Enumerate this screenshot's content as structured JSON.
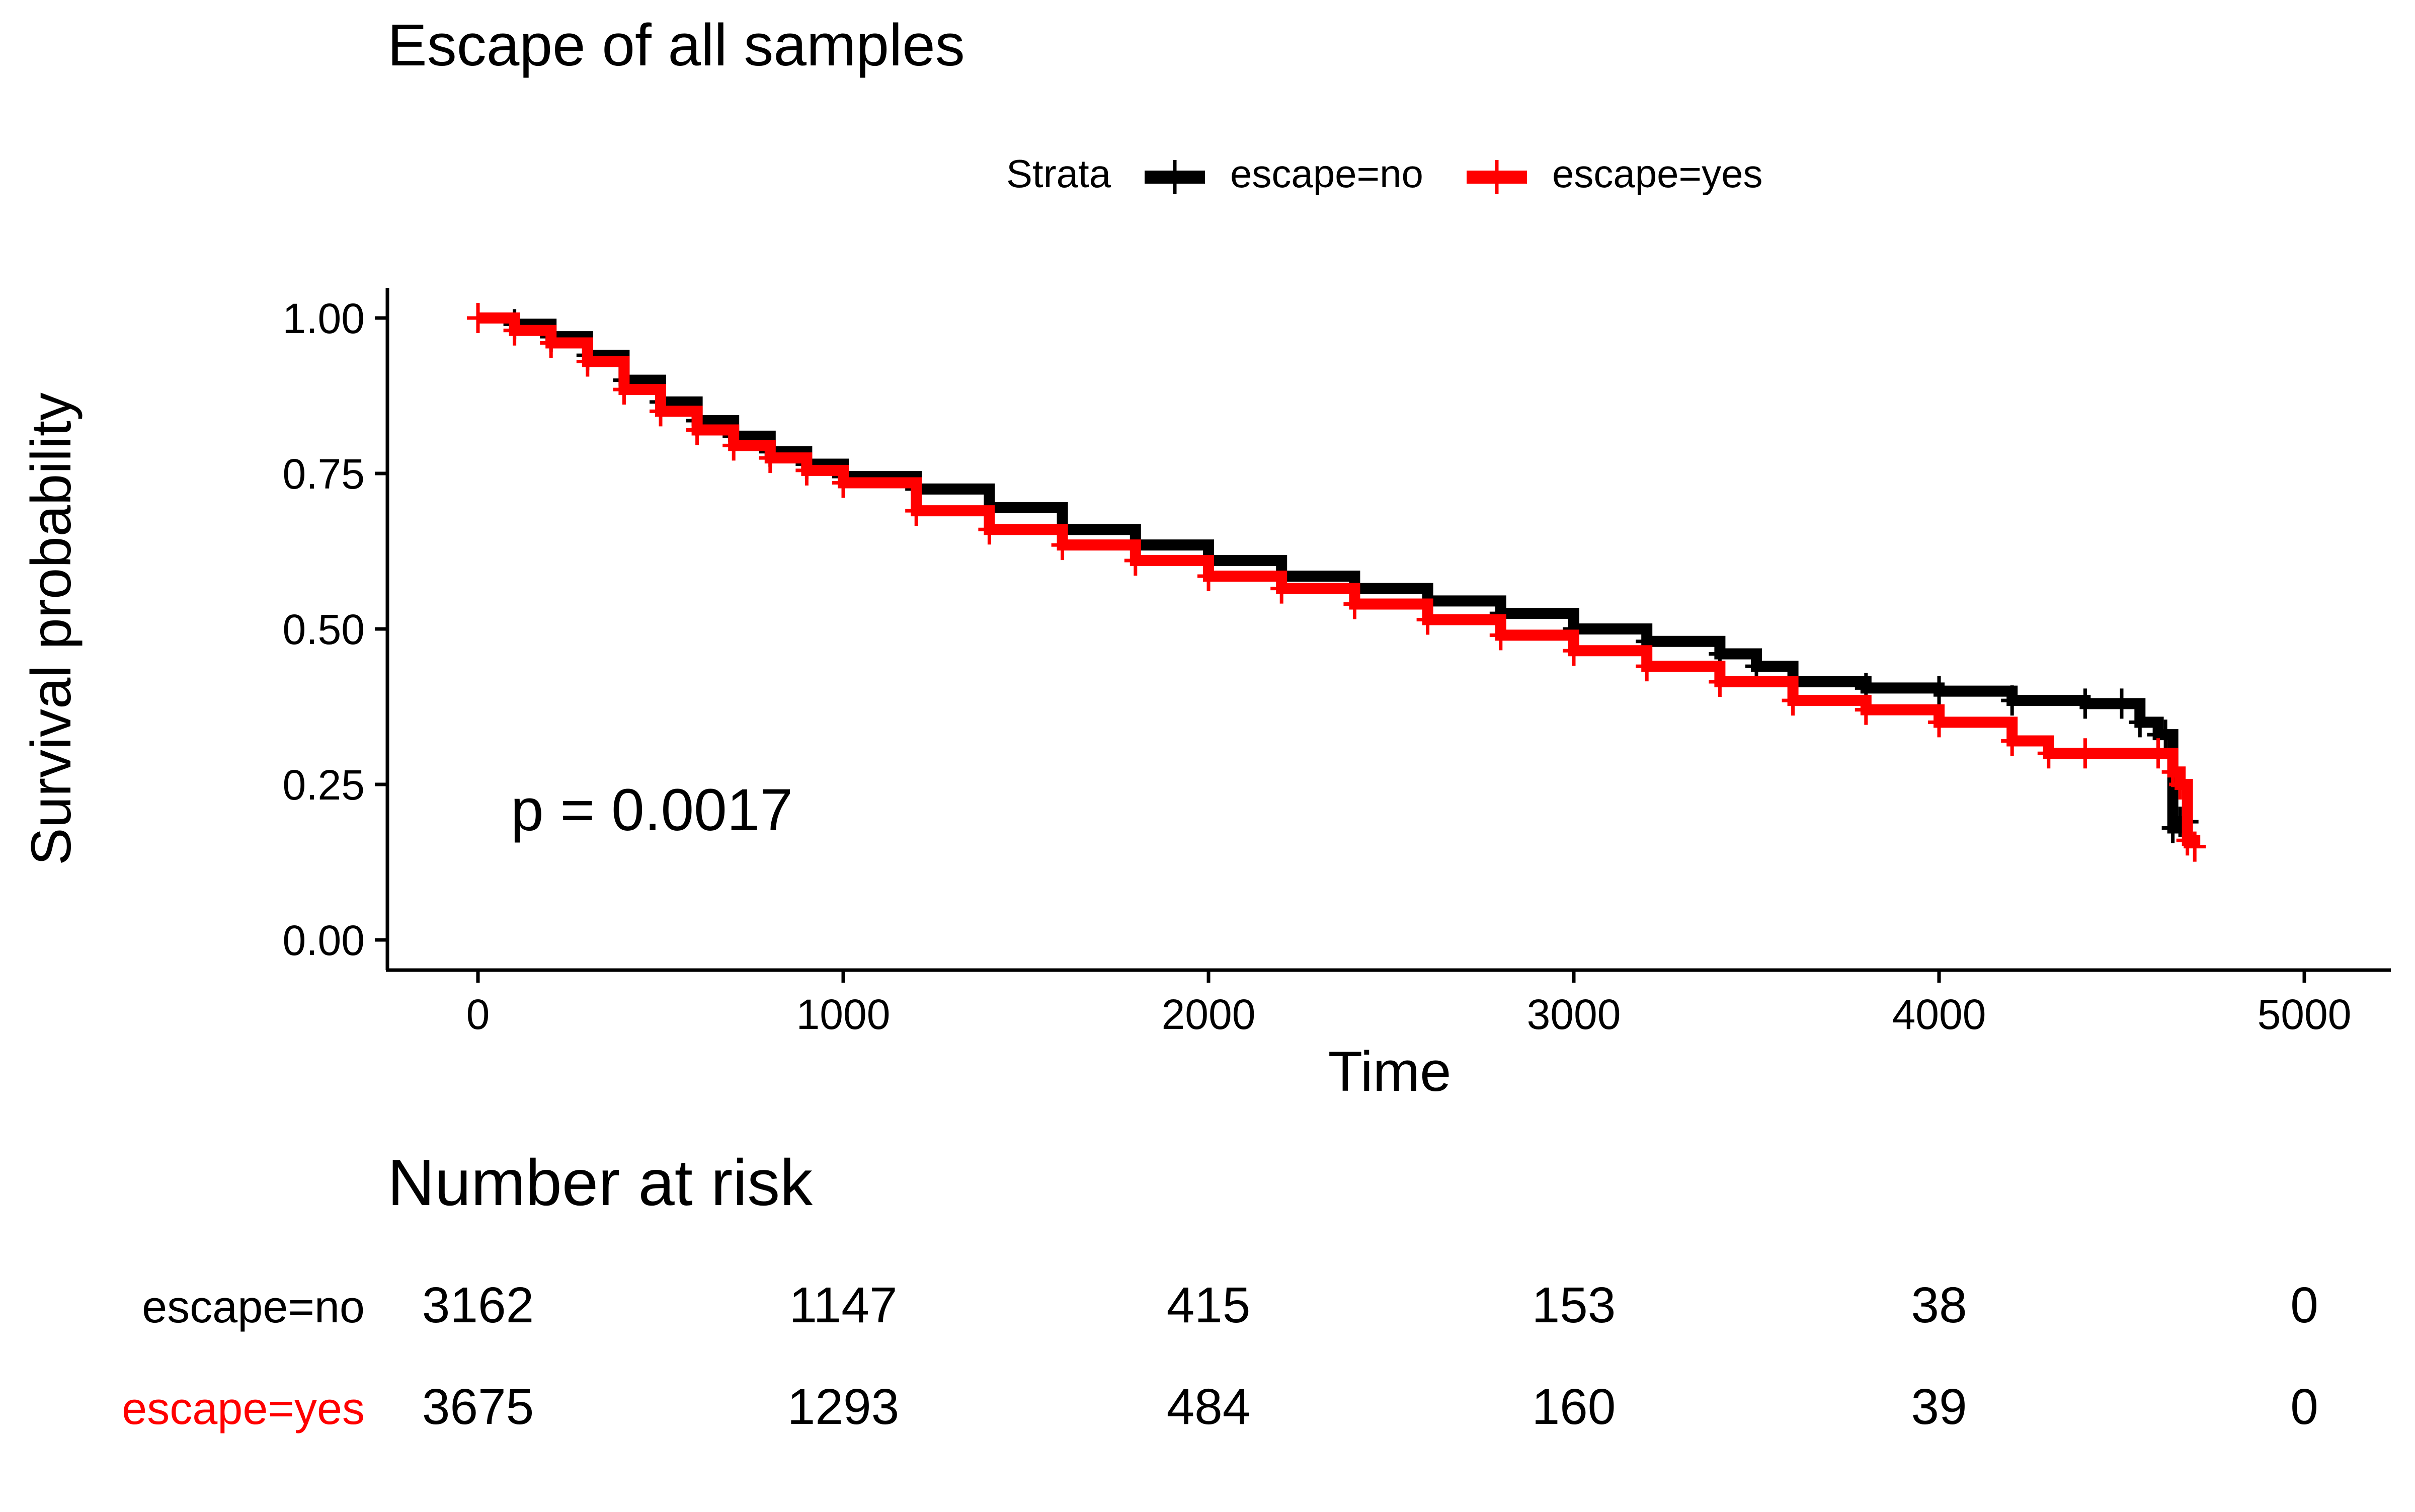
{
  "chart_data": {
    "type": "line",
    "title": "Escape of all samples",
    "xlabel": "Time",
    "ylabel": "Survival probability",
    "xlim": [
      0,
      5000
    ],
    "ylim": [
      0,
      1
    ],
    "x_ticks": [
      0,
      1000,
      2000,
      3000,
      4000,
      5000
    ],
    "y_ticks": [
      0.0,
      0.25,
      0.5,
      0.75,
      1.0
    ],
    "grid": false,
    "legend": {
      "title": "Strata",
      "position": "top"
    },
    "annotation": "p = 0.0017",
    "series": [
      {
        "name": "escape=no",
        "color": "#000000",
        "x": [
          0,
          100,
          200,
          300,
          400,
          500,
          600,
          700,
          800,
          900,
          1000,
          1200,
          1400,
          1600,
          1800,
          2000,
          2200,
          2400,
          2600,
          2800,
          3000,
          3200,
          3400,
          3500,
          3600,
          3800,
          4000,
          4200,
          4400,
          4500,
          4550,
          4600,
          4620,
          4640,
          4660,
          4680
        ],
        "y": [
          1.0,
          0.99,
          0.97,
          0.94,
          0.9,
          0.865,
          0.835,
          0.81,
          0.785,
          0.765,
          0.745,
          0.725,
          0.695,
          0.66,
          0.635,
          0.61,
          0.585,
          0.565,
          0.545,
          0.525,
          0.5,
          0.48,
          0.46,
          0.44,
          0.415,
          0.405,
          0.4,
          0.385,
          0.38,
          0.38,
          0.35,
          0.33,
          0.33,
          0.18,
          0.19,
          0.19
        ]
      },
      {
        "name": "escape=yes",
        "color": "#ff0000",
        "x": [
          0,
          100,
          200,
          300,
          400,
          500,
          600,
          700,
          800,
          900,
          1000,
          1200,
          1400,
          1600,
          1800,
          2000,
          2200,
          2400,
          2600,
          2800,
          3000,
          3200,
          3400,
          3600,
          3800,
          4000,
          4200,
          4300,
          4400,
          4600,
          4640,
          4660,
          4680,
          4700
        ],
        "y": [
          1.0,
          0.98,
          0.96,
          0.93,
          0.885,
          0.85,
          0.82,
          0.795,
          0.775,
          0.755,
          0.735,
          0.69,
          0.66,
          0.635,
          0.61,
          0.585,
          0.565,
          0.54,
          0.515,
          0.49,
          0.465,
          0.44,
          0.415,
          0.385,
          0.37,
          0.35,
          0.32,
          0.3,
          0.3,
          0.3,
          0.27,
          0.25,
          0.16,
          0.15
        ]
      }
    ]
  },
  "risk_table": {
    "title": "Number at risk",
    "rows": [
      {
        "label": "escape=no",
        "color": "#000000",
        "values": [
          "3162",
          "1147",
          "415",
          "153",
          "38",
          "0"
        ]
      },
      {
        "label": "escape=yes",
        "color": "#ff0000",
        "values": [
          "3675",
          "1293",
          "484",
          "160",
          "39",
          "0"
        ]
      }
    ]
  }
}
